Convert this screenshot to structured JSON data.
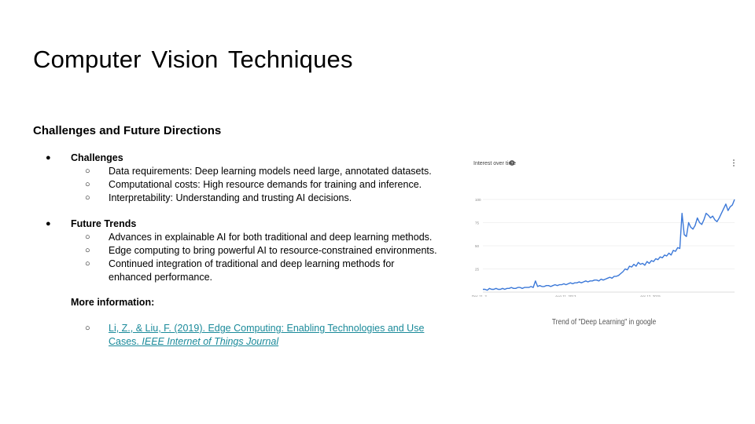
{
  "slide": {
    "title": "Computer  Vision Techniques",
    "subtitle": "Challenges and Future Directions"
  },
  "sections": {
    "challenges": {
      "heading": "Challenges",
      "items": [
        "Data requirements: Deep learning models need large, annotated datasets.",
        "Computational costs: High resource  demands for training and inference.",
        "Interpretability:  Understanding  and trusting AI decisions."
      ]
    },
    "future": {
      "heading": "Future Trends",
      "items": [
        "Advances  in explainable AI for both traditional and deep learning methods.",
        "Edge computing to bring powerful  AI to resource-constrained  environments.",
        "Continued  integration of traditional and deep learning methods for",
        "enhanced  performance."
      ]
    },
    "more_info": {
      "heading": "More information:",
      "link_line1": "Li, Z., & Liu, F. (2019). Edge Computing: Enabling Technologies  and Use",
      "link_line2_plain": "Cases. ",
      "link_line2_italic": "IEEE Internet of Things Journal"
    }
  },
  "chart_data": {
    "type": "line",
    "title": "Interest over time",
    "caption": "Trend of \"Deep Learning\" in google",
    "x_tick_labels": [
      "Dec 11, 2...",
      "Aug 11, 2013",
      "Apr 12, 2015"
    ],
    "y_tick_labels": [
      "100",
      "75",
      "50",
      "25"
    ],
    "ylim": [
      0,
      100
    ],
    "color": "#3b78d8",
    "series": [
      {
        "values": [
          3,
          3,
          2,
          4,
          3,
          3,
          4,
          3,
          3,
          4,
          3,
          4,
          4,
          5,
          4,
          4,
          5,
          5,
          4,
          5,
          5,
          5,
          6,
          5,
          12,
          6,
          7,
          6,
          6,
          7,
          7,
          6,
          7,
          8,
          7,
          8,
          8,
          9,
          8,
          9,
          10,
          9,
          10,
          10,
          11,
          10,
          11,
          12,
          11,
          12,
          12,
          13,
          13,
          12,
          14,
          13,
          14,
          15,
          16,
          15,
          17,
          17,
          18,
          20,
          22,
          25,
          24,
          28,
          27,
          30,
          28,
          32,
          30,
          31,
          29,
          33,
          31,
          34,
          33,
          36,
          35,
          38,
          37,
          40,
          39,
          42,
          40,
          45,
          44,
          48,
          47,
          85,
          62,
          60,
          75,
          70,
          68,
          72,
          80,
          75,
          73,
          78,
          85,
          83,
          80,
          82,
          78,
          76,
          80,
          85,
          90,
          95,
          88,
          92,
          94,
          100
        ]
      }
    ]
  }
}
